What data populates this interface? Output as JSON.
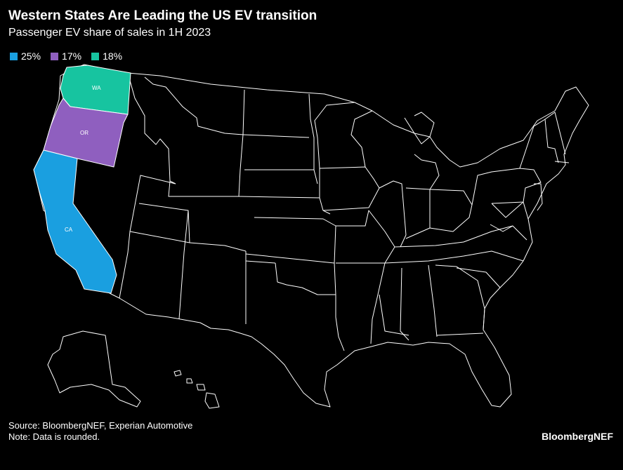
{
  "title": "Western States Are Leading the US EV transition",
  "subtitle": "Passenger EV share of sales in 1H 2023",
  "legend": [
    {
      "label": "25%",
      "color": "#1a9fe0"
    },
    {
      "label": "17%",
      "color": "#8f5fbf"
    },
    {
      "label": "18%",
      "color": "#17c4a0"
    }
  ],
  "states": {
    "wa": {
      "label": "WA",
      "share": 18,
      "color": "#17c4a0"
    },
    "or": {
      "label": "OR",
      "share": 17,
      "color": "#8f5fbf"
    },
    "ca": {
      "label": "CA",
      "share": 25,
      "color": "#1a9fe0"
    }
  },
  "colors": {
    "background": "#000000",
    "state_fill": "#000000",
    "state_border": "#ffffff"
  },
  "footer": {
    "source": "Source: BloombergNEF, Experian Automotive",
    "note": "Note: Data is rounded."
  },
  "brand": "BloombergNEF"
}
